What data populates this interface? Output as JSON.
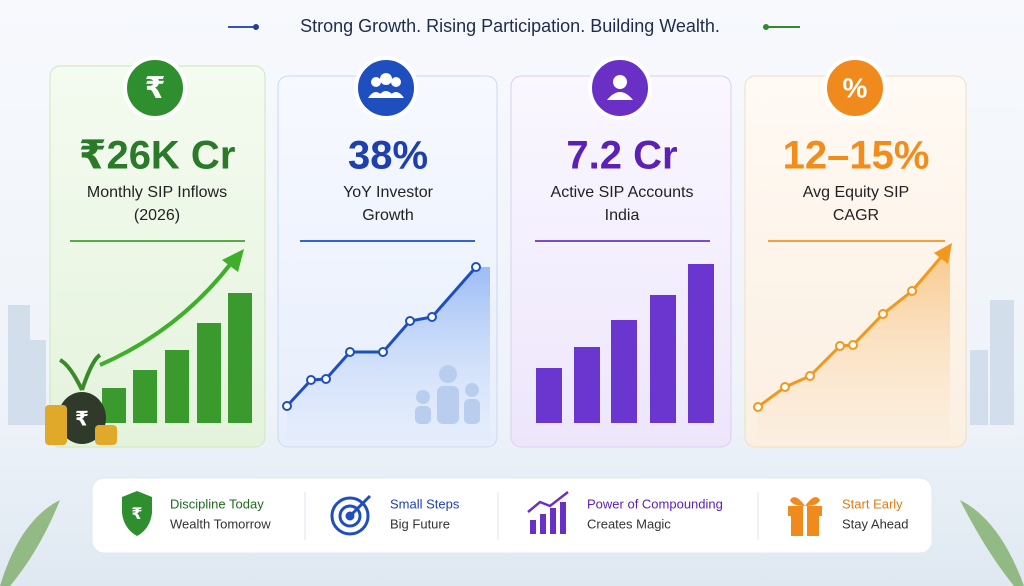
{
  "header": {
    "title": "Strong Growth. Rising Participation. Building Wealth."
  },
  "cards": [
    {
      "value": "₹26K Cr",
      "label_lines": [
        "Monthly SIP Inflows",
        "(2026)"
      ]
    },
    {
      "value": "38%",
      "label_lines": [
        "YoY Investor",
        "Growth"
      ]
    },
    {
      "value": "7.2 Cr",
      "label_lines": [
        "Active SIP Accounts",
        "India"
      ]
    },
    {
      "value": "12–15%",
      "label_lines": [
        "Avg Equity SIP",
        "CAGR"
      ]
    }
  ],
  "footer": [
    {
      "title": "Discipline Today",
      "subtitle": "Wealth Tomorrow"
    },
    {
      "title": "Small Steps",
      "subtitle": "Big Future"
    },
    {
      "title": "Power of Compounding",
      "subtitle": "Creates Magic"
    },
    {
      "title": "Start Early",
      "subtitle": "Stay Ahead"
    }
  ]
}
